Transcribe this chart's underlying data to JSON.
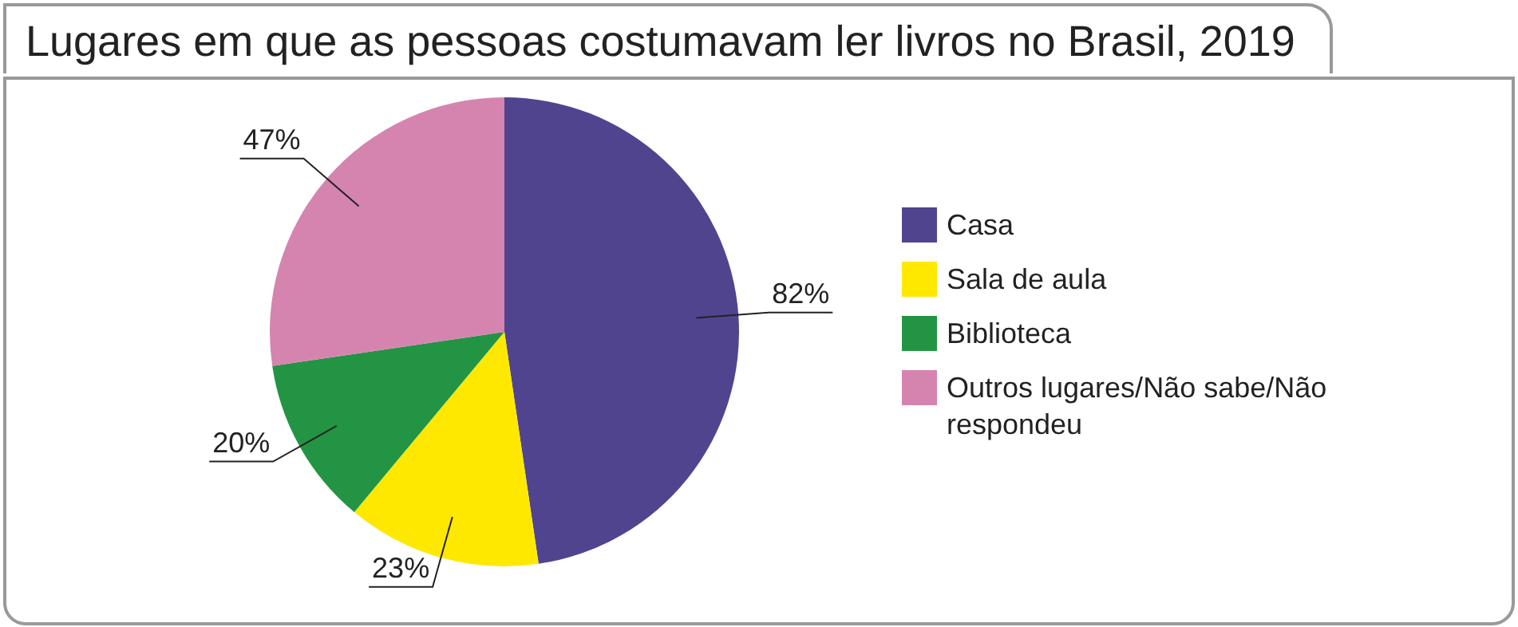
{
  "chart_data": {
    "type": "pie",
    "title": "Lugares em que as pessoas costumavam ler livros no Brasil, 2019",
    "categories": [
      "Casa",
      "Sala de aula",
      "Biblioteca",
      "Outros lugares/Não sabe/Não respondeu"
    ],
    "values": [
      82,
      23,
      20,
      47
    ],
    "colors": [
      "#51448f",
      "#ffe800",
      "#239443",
      "#d584b0"
    ],
    "value_labels": [
      "82%",
      "23%",
      "20%",
      "47%"
    ],
    "legend": "right"
  }
}
